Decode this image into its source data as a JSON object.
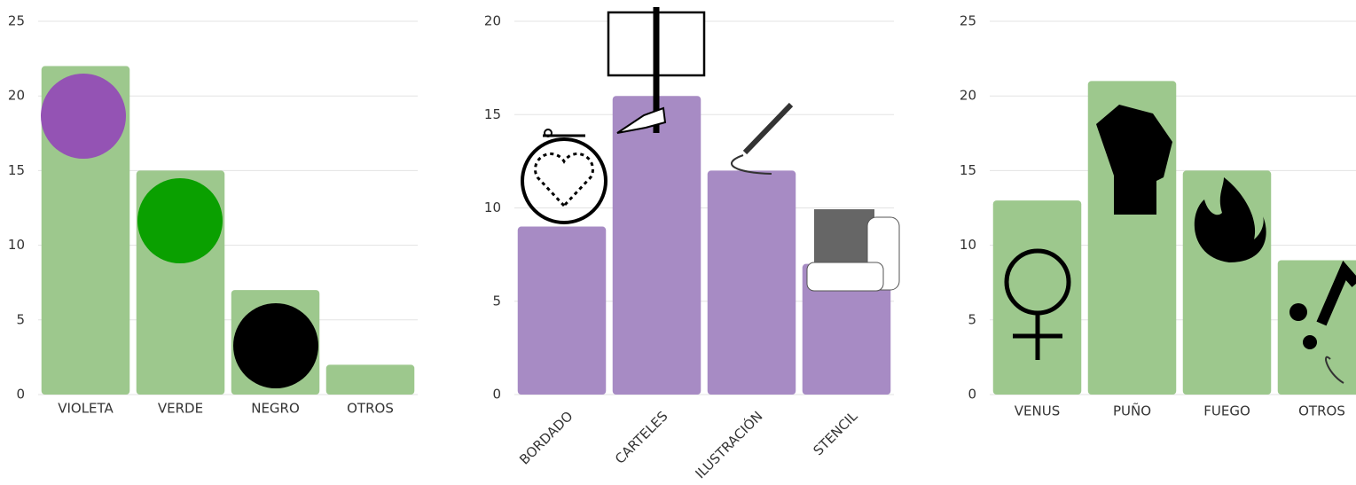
{
  "chart_data": [
    {
      "type": "bar",
      "categories": [
        "VIOLETA",
        "VERDE",
        "NEGRO",
        "OTROS"
      ],
      "values": [
        22,
        15,
        7,
        2
      ],
      "color": "#9dc88d",
      "ylim": [
        0,
        25
      ],
      "yticks": [
        0,
        5,
        10,
        15,
        20,
        25
      ],
      "grid": true
    },
    {
      "type": "bar",
      "categories": [
        "BORDADO",
        "CARTELES",
        "ILUSTRACIÓN",
        "STENCIL"
      ],
      "values": [
        9,
        16,
        12,
        7
      ],
      "color": "#a78bc4",
      "ylim": [
        0,
        20
      ],
      "yticks": [
        0,
        5,
        10,
        15,
        20
      ],
      "grid": true
    },
    {
      "type": "bar",
      "categories": [
        "VENUS",
        "PUÑO",
        "FUEGO",
        "OTROS"
      ],
      "values": [
        13,
        21,
        15,
        9
      ],
      "color": "#9dc88d",
      "ylim": [
        0,
        25
      ],
      "yticks": [
        0,
        5,
        10,
        15,
        20,
        25
      ],
      "grid": true
    }
  ]
}
